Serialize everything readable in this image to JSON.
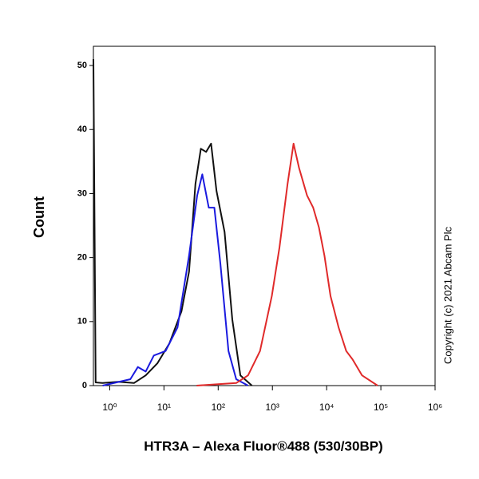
{
  "chart_data": {
    "type": "line",
    "x_label": "HTR3A – Alexa Fluor®488 (530/30BP)",
    "y_label": "Count",
    "annotation": "Copyright (c) 2021 Abcam Plc",
    "xscale": "log",
    "xlim": [
      0.5,
      1000000
    ],
    "ylim": [
      0,
      53
    ],
    "xticks": [
      {
        "value": 1,
        "label": "10⁰"
      },
      {
        "value": 10,
        "label": "10¹"
      },
      {
        "value": 100,
        "label": "10²"
      },
      {
        "value": 1000,
        "label": "10³"
      },
      {
        "value": 10000,
        "label": "10⁴"
      },
      {
        "value": 100000,
        "label": "10⁵"
      },
      {
        "value": 1000000,
        "label": "10⁶"
      }
    ],
    "yticks": [
      0,
      10,
      20,
      30,
      40,
      50
    ],
    "series": [
      {
        "color": "#111111",
        "x": [
          0.5,
          0.55,
          0.74,
          1.44,
          2.8,
          4.6,
          7.6,
          12.6,
          21,
          29,
          38,
          48,
          60,
          74,
          93,
          131,
          182,
          257,
          420
        ],
        "values": [
          51,
          0.5,
          0.4,
          0.6,
          0.4,
          1.6,
          3.5,
          6.6,
          11.6,
          17.8,
          31.5,
          37,
          36.5,
          37.8,
          30.4,
          24,
          10.3,
          1.6,
          0
        ]
      },
      {
        "color": "#1a1adf",
        "x": [
          0.74,
          2.4,
          3.3,
          4.6,
          6.5,
          10.7,
          17.8,
          29,
          41,
          51,
          67,
          85,
          110,
          155,
          215,
          355
        ],
        "values": [
          0,
          1,
          2.9,
          2.2,
          4.7,
          5.4,
          9.1,
          20.3,
          29.7,
          33,
          27.8,
          27.8,
          19,
          5.4,
          1,
          0
        ]
      },
      {
        "color": "#e02a2a",
        "x": [
          40,
          215,
          355,
          590,
          975,
          1350,
          1900,
          2450,
          3100,
          4350,
          5650,
          7200,
          9100,
          11800,
          16600,
          23000,
          30000,
          45000,
          87000
        ],
        "values": [
          0,
          0.4,
          1.6,
          5.4,
          14,
          21.6,
          31.5,
          37.8,
          34,
          29.7,
          27.8,
          24.7,
          20.3,
          14,
          9.1,
          5.4,
          4.1,
          1.6,
          0
        ]
      }
    ]
  }
}
